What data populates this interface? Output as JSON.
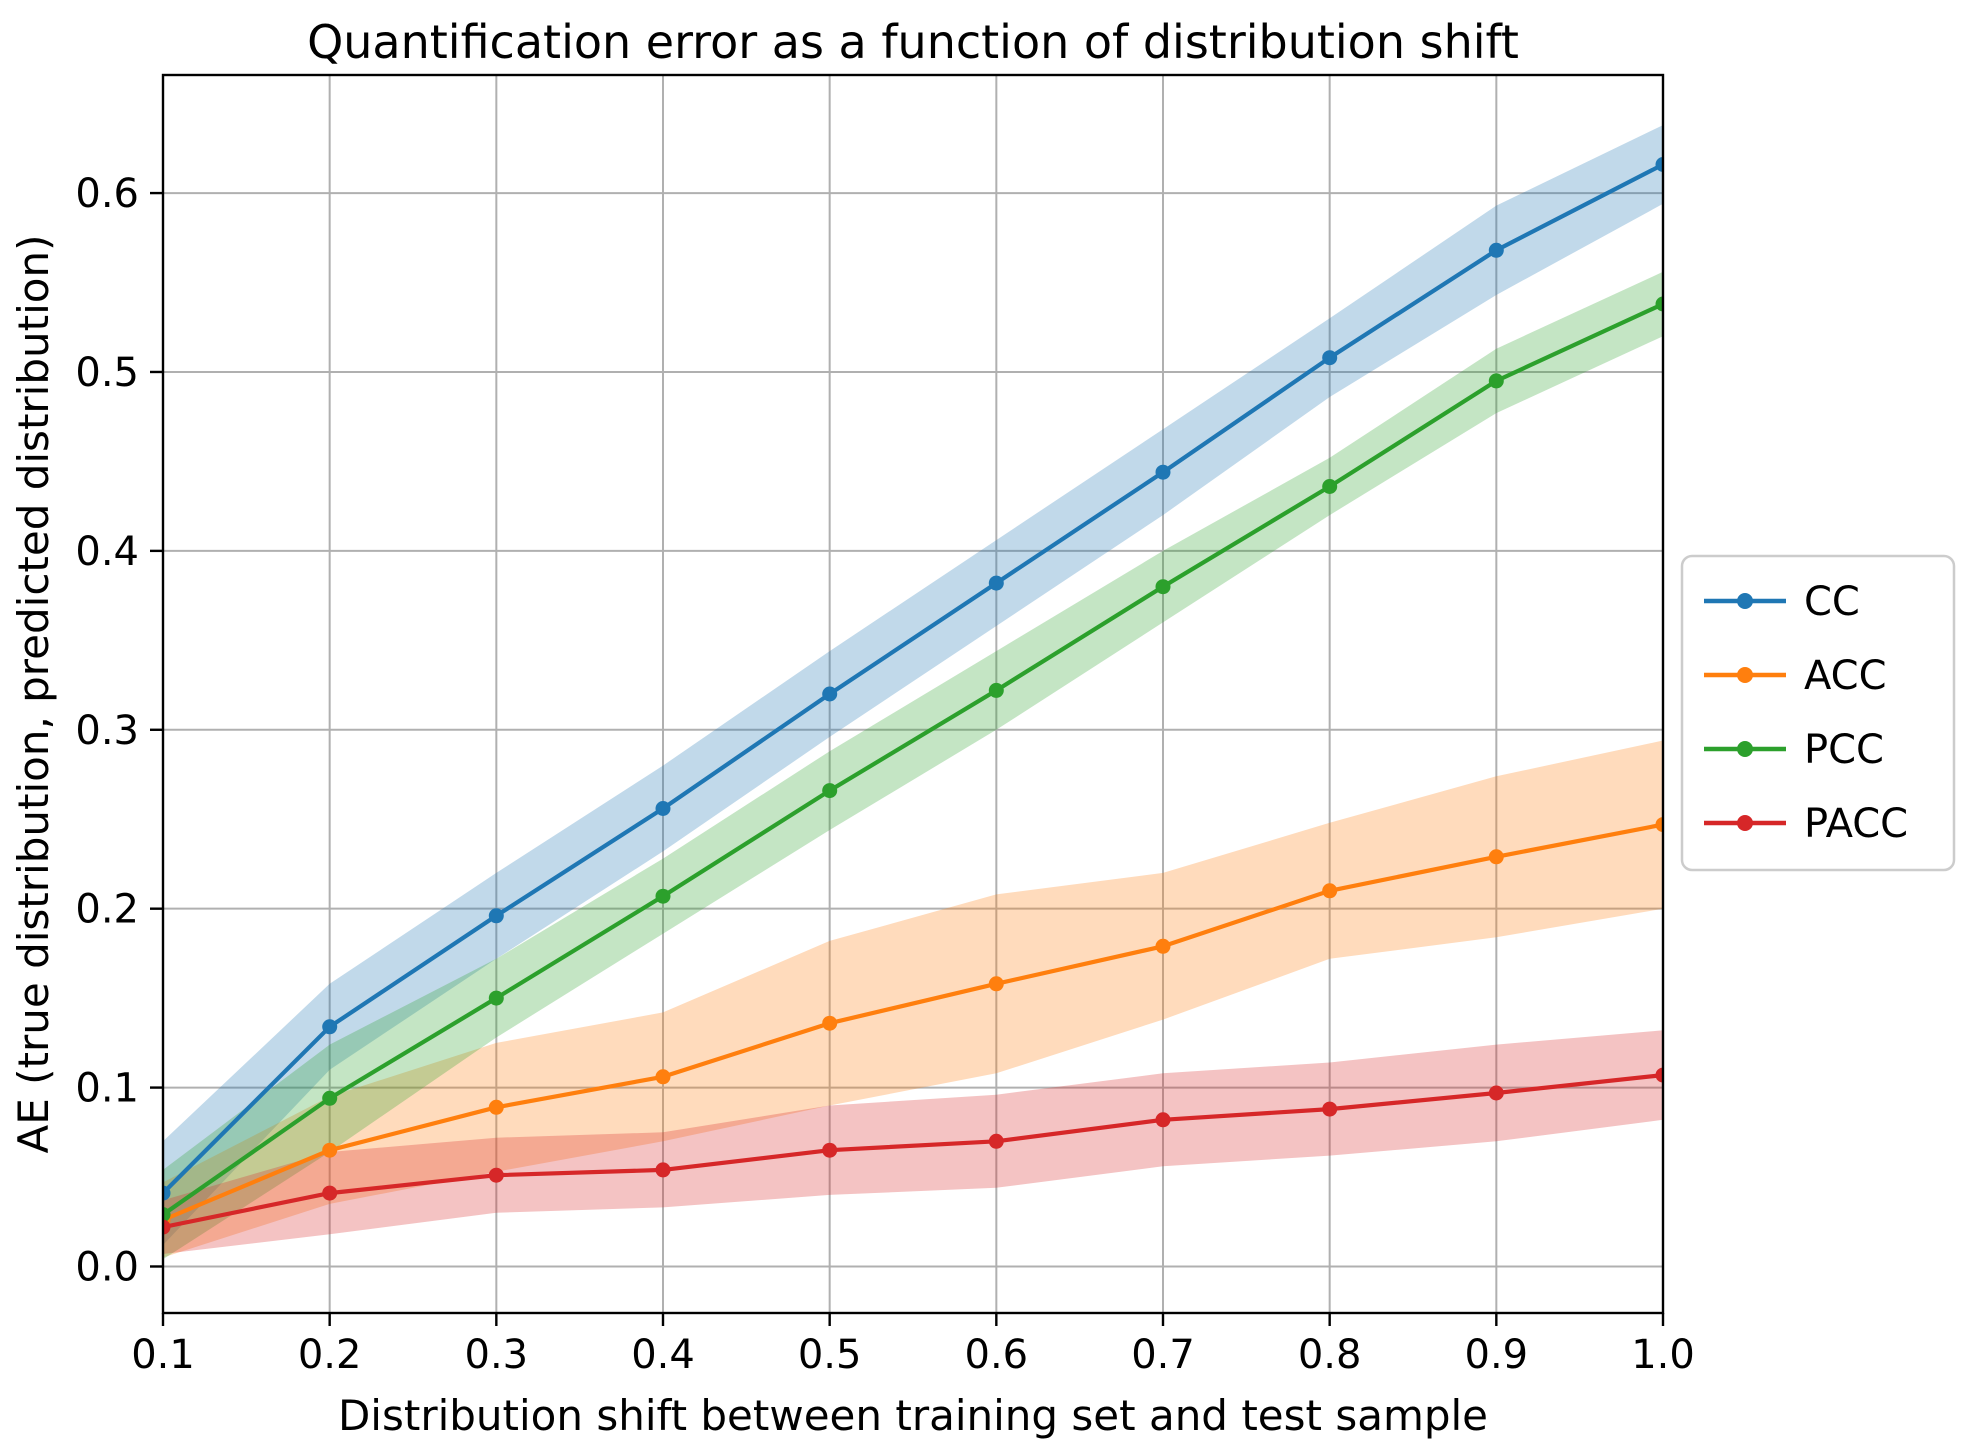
{
  "figure": {
    "background": "#ffffff",
    "text_color": "#000000",
    "grid_color": "#b0b0b0",
    "spine_color": "#000000"
  },
  "chart_data": {
    "type": "line",
    "title": "Quantification error as a function of distribution shift",
    "xlabel": "Distribution shift between training set and test sample",
    "ylabel": "AE (true distribution, predicted distribution)",
    "x": [
      0.1,
      0.2,
      0.3,
      0.4,
      0.5,
      0.6,
      0.7,
      0.8,
      0.9,
      1.0
    ],
    "xlim": [
      0.1,
      1.0
    ],
    "ylim": [
      -0.026,
      0.666
    ],
    "xtick_labels": [
      "0.1",
      "0.2",
      "0.3",
      "0.4",
      "0.5",
      "0.6",
      "0.7",
      "0.8",
      "0.9",
      "1.0"
    ],
    "ytick_labels": [
      "0.0",
      "0.1",
      "0.2",
      "0.3",
      "0.4",
      "0.5",
      "0.6"
    ],
    "grid": true,
    "legend_position": "right-outside",
    "band_opacity": 0.28,
    "series": [
      {
        "name": "CC",
        "color": "#1f77b4",
        "values": [
          0.041,
          0.134,
          0.196,
          0.256,
          0.32,
          0.382,
          0.444,
          0.508,
          0.568,
          0.616
        ],
        "band_lower": [
          0.012,
          0.11,
          0.172,
          0.232,
          0.296,
          0.358,
          0.42,
          0.486,
          0.543,
          0.594
        ],
        "band_upper": [
          0.07,
          0.158,
          0.22,
          0.28,
          0.344,
          0.406,
          0.468,
          0.53,
          0.593,
          0.638
        ]
      },
      {
        "name": "ACC",
        "color": "#ff7f0e",
        "values": [
          0.026,
          0.065,
          0.089,
          0.106,
          0.136,
          0.158,
          0.179,
          0.21,
          0.229,
          0.247
        ],
        "band_lower": [
          0.005,
          0.035,
          0.053,
          0.07,
          0.09,
          0.108,
          0.138,
          0.172,
          0.184,
          0.2
        ],
        "band_upper": [
          0.047,
          0.095,
          0.125,
          0.142,
          0.182,
          0.208,
          0.22,
          0.248,
          0.274,
          0.294
        ]
      },
      {
        "name": "PCC",
        "color": "#2ca02c",
        "values": [
          0.029,
          0.094,
          0.15,
          0.207,
          0.266,
          0.322,
          0.38,
          0.436,
          0.495,
          0.538
        ],
        "band_lower": [
          0.004,
          0.064,
          0.128,
          0.186,
          0.244,
          0.3,
          0.36,
          0.42,
          0.477,
          0.52
        ],
        "band_upper": [
          0.054,
          0.124,
          0.172,
          0.228,
          0.288,
          0.344,
          0.4,
          0.452,
          0.513,
          0.556
        ]
      },
      {
        "name": "PACC",
        "color": "#d62728",
        "values": [
          0.022,
          0.041,
          0.051,
          0.054,
          0.065,
          0.07,
          0.082,
          0.088,
          0.097,
          0.107
        ],
        "band_lower": [
          0.007,
          0.018,
          0.03,
          0.033,
          0.04,
          0.044,
          0.056,
          0.062,
          0.07,
          0.082
        ],
        "band_upper": [
          0.037,
          0.064,
          0.072,
          0.075,
          0.09,
          0.096,
          0.108,
          0.114,
          0.124,
          0.132
        ]
      }
    ]
  }
}
